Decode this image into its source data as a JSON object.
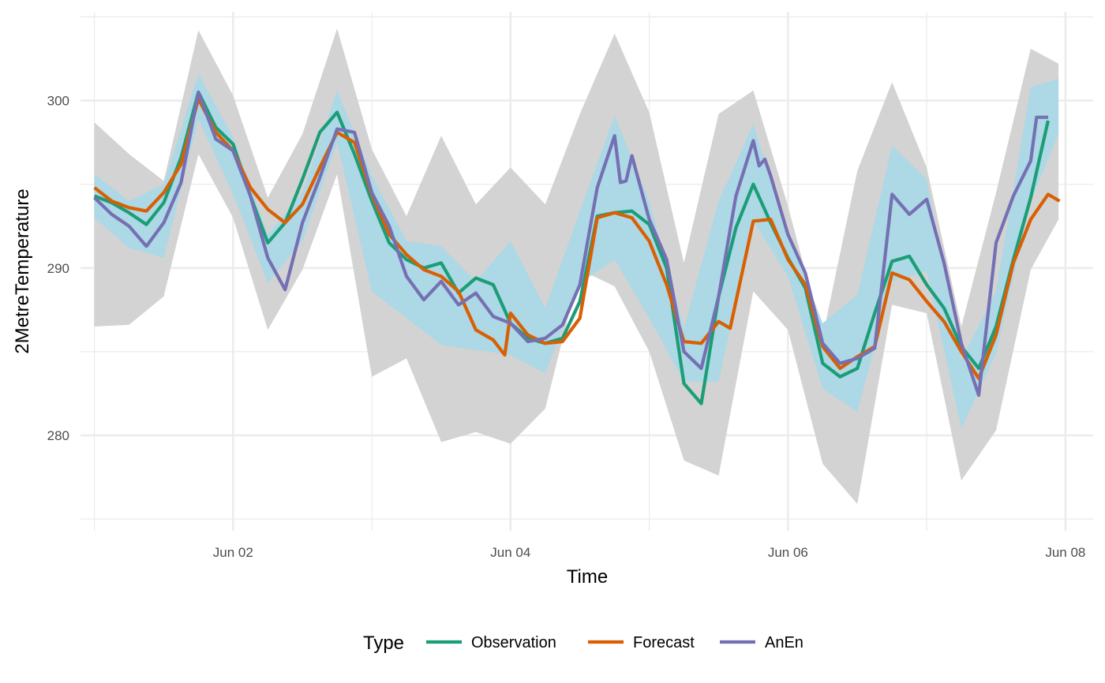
{
  "chart_data": {
    "type": "line",
    "xlabel": "Time",
    "ylabel": "2MetreTemperature",
    "xlim": [
      0.9,
      8.2
    ],
    "ylim": [
      274.3,
      305.3
    ],
    "x_ticks": [
      {
        "value": 2,
        "label": "Jun 02"
      },
      {
        "value": 4,
        "label": "Jun 04"
      },
      {
        "value": 6,
        "label": "Jun 06"
      },
      {
        "value": 8,
        "label": "Jun 08"
      }
    ],
    "x_minor": [
      1,
      3,
      5,
      7
    ],
    "y_ticks": [
      {
        "value": 280,
        "label": "280"
      },
      {
        "value": 290,
        "label": "290"
      },
      {
        "value": 300,
        "label": "300"
      }
    ],
    "y_minor": [
      275,
      285,
      295,
      305
    ],
    "grid": true,
    "legend": {
      "title": "Type",
      "position": "bottom",
      "entries": [
        {
          "label": "Observation",
          "color": "#1b9e77"
        },
        {
          "label": "Forecast",
          "color": "#d95f02"
        },
        {
          "label": "AnEn",
          "color": "#7570b3"
        }
      ]
    },
    "bands": [
      {
        "fill": "#d3d3d3",
        "x": [
          1.0,
          1.25,
          1.5,
          1.75,
          2.0,
          2.25,
          2.5,
          2.75,
          3.0,
          3.25,
          3.5,
          3.75,
          4.0,
          4.25,
          4.5,
          4.75,
          5.0,
          5.25,
          5.5,
          5.75,
          6.0,
          6.25,
          6.5,
          6.75,
          7.0,
          7.25,
          7.5,
          7.75,
          7.95
        ],
        "upper": [
          298.7,
          296.8,
          295.2,
          304.2,
          300.3,
          294.2,
          298.0,
          304.3,
          297.1,
          293.1,
          297.9,
          293.8,
          296.0,
          293.8,
          299.2,
          304.0,
          299.3,
          290.3,
          299.2,
          300.6,
          293.7,
          285.9,
          295.8,
          301.1,
          296.0,
          286.5,
          294.5,
          303.1,
          302.2
        ],
        "lower": [
          286.5,
          286.6,
          288.3,
          296.8,
          293.0,
          286.3,
          289.9,
          295.6,
          283.5,
          284.6,
          279.6,
          280.2,
          279.5,
          281.6,
          289.9,
          288.9,
          285.0,
          278.5,
          277.6,
          288.6,
          286.3,
          278.3,
          275.9,
          287.8,
          287.3,
          277.3,
          280.3,
          289.9,
          292.9
        ]
      },
      {
        "fill": "#add8e6",
        "x": [
          1.0,
          1.25,
          1.5,
          1.75,
          2.0,
          2.25,
          2.5,
          2.75,
          3.0,
          3.25,
          3.5,
          3.75,
          4.0,
          4.25,
          4.5,
          4.75,
          5.0,
          5.25,
          5.5,
          5.75,
          6.0,
          6.25,
          6.5,
          6.75,
          7.0,
          7.25,
          7.5,
          7.75,
          7.95
        ],
        "upper": [
          295.6,
          294.0,
          295.0,
          301.6,
          297.8,
          292.0,
          294.5,
          300.6,
          295.5,
          291.6,
          291.3,
          289.2,
          291.6,
          287.6,
          293.4,
          299.1,
          294.0,
          286.4,
          294.0,
          298.6,
          292.0,
          286.7,
          288.4,
          297.3,
          295.3,
          284.5,
          288.6,
          300.8,
          301.3
        ],
        "lower": [
          293.0,
          291.2,
          290.6,
          298.9,
          294.4,
          289.1,
          291.6,
          297.5,
          288.6,
          287.0,
          285.4,
          285.1,
          284.8,
          283.7,
          289.1,
          290.5,
          287.0,
          283.2,
          283.2,
          292.8,
          289.5,
          282.8,
          281.4,
          289.2,
          289.8,
          280.4,
          284.9,
          294.0,
          298.0
        ]
      }
    ],
    "series": [
      {
        "name": "Observation",
        "color": "#1b9e77",
        "x": [
          1.0,
          1.125,
          1.25,
          1.375,
          1.5,
          1.625,
          1.75,
          1.875,
          2.0,
          2.125,
          2.25,
          2.375,
          2.5,
          2.625,
          2.75,
          2.875,
          3.0,
          3.125,
          3.25,
          3.375,
          3.5,
          3.625,
          3.75,
          3.875,
          4.0,
          4.125,
          4.25,
          4.375,
          4.5,
          4.625,
          4.75,
          4.875,
          5.0,
          5.125,
          5.25,
          5.375,
          5.5,
          5.625,
          5.75,
          5.875,
          6.0,
          6.125,
          6.25,
          6.375,
          6.5,
          6.625,
          6.75,
          6.875,
          7.0,
          7.125,
          7.25,
          7.375,
          7.5,
          7.625,
          7.75,
          7.875
        ],
        "values": [
          294.3,
          293.9,
          293.3,
          292.6,
          293.9,
          296.6,
          300.5,
          298.4,
          297.4,
          294.3,
          291.5,
          292.7,
          295.3,
          298.1,
          299.3,
          296.8,
          294.0,
          291.5,
          290.5,
          290.0,
          290.3,
          288.5,
          289.4,
          289.0,
          286.7,
          285.8,
          285.5,
          285.8,
          288.0,
          293.1,
          293.3,
          293.4,
          292.6,
          290.0,
          283.1,
          281.9,
          288.3,
          292.4,
          295.0,
          292.7,
          290.6,
          288.8,
          284.3,
          283.5,
          284.0,
          287.3,
          290.4,
          290.7,
          289.0,
          287.6,
          285.3,
          284.0,
          286.5,
          290.5,
          294.2,
          298.8
        ]
      },
      {
        "name": "Forecast",
        "color": "#d95f02",
        "x": [
          1.0,
          1.125,
          1.25,
          1.375,
          1.5,
          1.625,
          1.75,
          1.875,
          2.0,
          2.125,
          2.25,
          2.375,
          2.5,
          2.625,
          2.75,
          2.875,
          3.0,
          3.125,
          3.25,
          3.375,
          3.5,
          3.625,
          3.75,
          3.875,
          3.958,
          4.0,
          4.125,
          4.25,
          4.375,
          4.5,
          4.625,
          4.75,
          4.875,
          5.0,
          5.125,
          5.25,
          5.375,
          5.5,
          5.583,
          5.625,
          5.75,
          5.875,
          6.0,
          6.125,
          6.25,
          6.375,
          6.5,
          6.625,
          6.75,
          6.875,
          7.0,
          7.125,
          7.25,
          7.375,
          7.5,
          7.625,
          7.75,
          7.875,
          7.958
        ],
        "values": [
          294.8,
          294.0,
          293.6,
          293.4,
          294.5,
          296.2,
          300.1,
          298.1,
          297.0,
          294.8,
          293.5,
          292.7,
          293.8,
          296.0,
          298.1,
          297.5,
          294.4,
          292.0,
          290.8,
          289.9,
          289.5,
          288.6,
          286.3,
          285.7,
          284.8,
          287.3,
          286.0,
          285.5,
          285.6,
          287.0,
          293.0,
          293.3,
          293.0,
          291.6,
          289.0,
          285.6,
          285.5,
          286.8,
          286.4,
          288.0,
          292.8,
          292.9,
          290.5,
          289.0,
          285.3,
          284.0,
          284.7,
          285.3,
          289.7,
          289.3,
          288.0,
          286.8,
          285.0,
          283.4,
          286.0,
          290.3,
          292.9,
          294.4,
          294.0
        ]
      },
      {
        "name": "AnEn",
        "color": "#7570b3",
        "x": [
          1.0,
          1.125,
          1.25,
          1.375,
          1.5,
          1.625,
          1.75,
          1.875,
          2.0,
          2.125,
          2.25,
          2.375,
          2.5,
          2.625,
          2.75,
          2.875,
          3.0,
          3.125,
          3.25,
          3.375,
          3.5,
          3.625,
          3.75,
          3.875,
          4.0,
          4.125,
          4.25,
          4.375,
          4.5,
          4.625,
          4.75,
          4.792,
          4.833,
          4.875,
          5.0,
          5.125,
          5.25,
          5.375,
          5.5,
          5.625,
          5.75,
          5.792,
          5.833,
          5.875,
          6.0,
          6.125,
          6.25,
          6.375,
          6.5,
          6.625,
          6.75,
          6.875,
          7.0,
          7.125,
          7.25,
          7.375,
          7.5,
          7.625,
          7.75,
          7.792,
          7.875
        ],
        "values": [
          294.2,
          293.2,
          292.5,
          291.3,
          292.7,
          295.1,
          300.5,
          297.7,
          297.0,
          294.3,
          290.6,
          288.7,
          292.7,
          295.4,
          298.3,
          298.1,
          294.5,
          292.5,
          289.5,
          288.1,
          289.2,
          287.8,
          288.5,
          287.1,
          286.7,
          285.6,
          285.8,
          286.6,
          289.0,
          294.8,
          297.9,
          295.1,
          295.2,
          296.7,
          292.9,
          290.5,
          285.0,
          284.0,
          288.3,
          294.3,
          297.6,
          296.1,
          296.5,
          295.5,
          292.0,
          289.7,
          285.5,
          284.3,
          284.6,
          285.2,
          294.4,
          293.2,
          294.1,
          290.3,
          285.5,
          282.4,
          291.5,
          294.3,
          296.4,
          299.0,
          299.0
        ]
      }
    ]
  }
}
